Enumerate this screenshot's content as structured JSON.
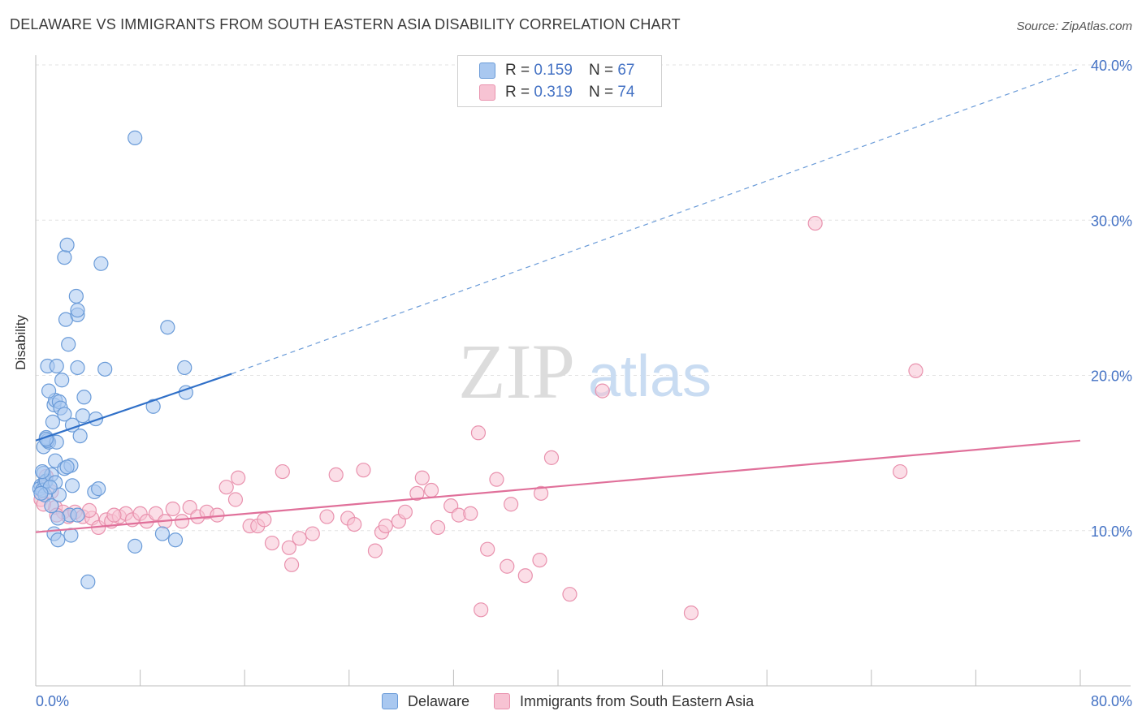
{
  "title": "DELAWARE VS IMMIGRANTS FROM SOUTH EASTERN ASIA DISABILITY CORRELATION CHART",
  "source": "Source: ZipAtlas.com",
  "watermark": {
    "zip": "ZIP",
    "atlas": "atlas"
  },
  "legend_top": [
    {
      "r_label": "R =",
      "r_value": "0.159",
      "n_label": "N =",
      "n_value": "67"
    },
    {
      "r_label": "R =",
      "r_value": "0.319",
      "n_label": "N =",
      "n_value": "74"
    }
  ],
  "colors": {
    "blue_fill": "#a9c8f0",
    "blue_stroke": "#6a9bd8",
    "blue_line": "#3070c8",
    "pink_fill": "#f7c3d3",
    "pink_stroke": "#e992ae",
    "pink_line": "#e0709a",
    "tick_text": "#4472c4",
    "grid": "#e3e3e3"
  },
  "chart_data": {
    "type": "scatter",
    "title": "DELAWARE VS IMMIGRANTS FROM SOUTH EASTERN ASIA DISABILITY CORRELATION CHART",
    "xlabel": "",
    "ylabel": "Disability",
    "xlim": [
      0,
      80
    ],
    "ylim": [
      0,
      40
    ],
    "x_tick_labels": [
      "0.0%",
      "80.0%"
    ],
    "y_ticks": [
      10,
      20,
      30,
      40
    ],
    "y_tick_labels": [
      "10.0%",
      "20.0%",
      "30.0%",
      "40.0%"
    ],
    "series": [
      {
        "name": "Delaware",
        "r": 0.159,
        "n": 67,
        "trend": {
          "x0": 0,
          "y0": 15.8,
          "x1": 15.0,
          "y1": 20.1,
          "dashed_to_x": 80,
          "dashed_to_y": 39.8
        },
        "points": [
          [
            0.4,
            12.9
          ],
          [
            0.6,
            13.7
          ],
          [
            0.3,
            12.7
          ],
          [
            0.7,
            13.1
          ],
          [
            0.5,
            12.6
          ],
          [
            0.8,
            13.2
          ],
          [
            1.2,
            13.6
          ],
          [
            1.5,
            13.1
          ],
          [
            0.6,
            15.4
          ],
          [
            0.8,
            16.0
          ],
          [
            1.0,
            15.7
          ],
          [
            0.9,
            15.8
          ],
          [
            1.3,
            17.0
          ],
          [
            1.6,
            15.7
          ],
          [
            1.4,
            18.1
          ],
          [
            1.5,
            18.4
          ],
          [
            1.8,
            18.3
          ],
          [
            1.9,
            17.9
          ],
          [
            2.2,
            17.5
          ],
          [
            2.8,
            16.8
          ],
          [
            3.4,
            16.1
          ],
          [
            3.6,
            17.4
          ],
          [
            4.6,
            17.2
          ],
          [
            3.7,
            18.6
          ],
          [
            0.9,
            20.6
          ],
          [
            1.6,
            20.6
          ],
          [
            2.0,
            19.7
          ],
          [
            1.0,
            19.0
          ],
          [
            3.2,
            20.5
          ],
          [
            5.3,
            20.4
          ],
          [
            1.5,
            14.5
          ],
          [
            2.2,
            14.0
          ],
          [
            2.7,
            14.2
          ],
          [
            1.8,
            12.3
          ],
          [
            2.8,
            12.9
          ],
          [
            4.5,
            12.5
          ],
          [
            4.8,
            12.7
          ],
          [
            2.6,
            11.0
          ],
          [
            1.7,
            10.8
          ],
          [
            1.4,
            9.8
          ],
          [
            1.7,
            9.4
          ],
          [
            2.7,
            9.7
          ],
          [
            3.2,
            11.0
          ],
          [
            9.7,
            9.8
          ],
          [
            10.7,
            9.4
          ],
          [
            7.6,
            9.0
          ],
          [
            4.0,
            6.7
          ],
          [
            2.5,
            22.0
          ],
          [
            2.3,
            23.6
          ],
          [
            3.2,
            23.9
          ],
          [
            3.2,
            24.2
          ],
          [
            3.1,
            25.1
          ],
          [
            2.2,
            27.6
          ],
          [
            2.4,
            28.4
          ],
          [
            5.0,
            27.2
          ],
          [
            7.6,
            35.3
          ],
          [
            10.1,
            23.1
          ],
          [
            11.5,
            18.9
          ],
          [
            9.0,
            18.0
          ],
          [
            11.4,
            20.5
          ],
          [
            0.7,
            12.3
          ],
          [
            0.5,
            13.8
          ],
          [
            1.2,
            11.6
          ],
          [
            0.8,
            15.9
          ],
          [
            1.1,
            12.8
          ],
          [
            2.4,
            14.1
          ],
          [
            0.4,
            12.4
          ]
        ]
      },
      {
        "name": "Immigrants from South Eastern Asia",
        "r": 0.319,
        "n": 74,
        "trend": {
          "x0": 0,
          "y0": 9.9,
          "x1": 80,
          "y1": 15.8
        },
        "points": [
          [
            0.4,
            12.0
          ],
          [
            0.8,
            13.5
          ],
          [
            1.2,
            12.5
          ],
          [
            1.5,
            11.5
          ],
          [
            2.1,
            11.2
          ],
          [
            2.5,
            10.9
          ],
          [
            3.0,
            11.2
          ],
          [
            3.6,
            10.9
          ],
          [
            4.3,
            10.8
          ],
          [
            4.8,
            10.2
          ],
          [
            5.4,
            10.7
          ],
          [
            5.8,
            10.6
          ],
          [
            6.4,
            10.9
          ],
          [
            6.9,
            11.1
          ],
          [
            7.4,
            10.7
          ],
          [
            8.0,
            11.1
          ],
          [
            8.5,
            10.6
          ],
          [
            9.2,
            11.1
          ],
          [
            9.9,
            10.6
          ],
          [
            10.5,
            11.4
          ],
          [
            11.2,
            10.6
          ],
          [
            11.8,
            11.5
          ],
          [
            12.4,
            10.9
          ],
          [
            13.1,
            11.2
          ],
          [
            13.9,
            11.0
          ],
          [
            14.6,
            12.8
          ],
          [
            15.3,
            12.0
          ],
          [
            15.5,
            13.4
          ],
          [
            16.4,
            10.3
          ],
          [
            17.0,
            10.3
          ],
          [
            17.5,
            10.7
          ],
          [
            18.1,
            9.2
          ],
          [
            18.9,
            13.8
          ],
          [
            19.4,
            8.9
          ],
          [
            19.6,
            7.8
          ],
          [
            20.2,
            9.5
          ],
          [
            21.2,
            9.8
          ],
          [
            22.3,
            10.9
          ],
          [
            23.0,
            13.6
          ],
          [
            23.9,
            10.8
          ],
          [
            24.4,
            10.4
          ],
          [
            25.1,
            13.9
          ],
          [
            26.0,
            8.7
          ],
          [
            26.5,
            9.9
          ],
          [
            26.8,
            10.3
          ],
          [
            27.8,
            10.6
          ],
          [
            28.3,
            11.2
          ],
          [
            29.2,
            12.4
          ],
          [
            29.6,
            13.4
          ],
          [
            30.3,
            12.6
          ],
          [
            30.8,
            10.2
          ],
          [
            31.8,
            11.6
          ],
          [
            32.4,
            11.0
          ],
          [
            33.3,
            11.1
          ],
          [
            33.9,
            16.3
          ],
          [
            34.1,
            4.9
          ],
          [
            34.6,
            8.8
          ],
          [
            35.3,
            13.3
          ],
          [
            36.1,
            7.7
          ],
          [
            36.4,
            11.7
          ],
          [
            37.5,
            7.1
          ],
          [
            38.6,
            8.1
          ],
          [
            38.7,
            12.4
          ],
          [
            39.5,
            14.7
          ],
          [
            40.9,
            5.9
          ],
          [
            43.4,
            19.0
          ],
          [
            50.2,
            4.7
          ],
          [
            59.7,
            29.8
          ],
          [
            66.2,
            13.8
          ],
          [
            67.4,
            20.3
          ],
          [
            4.1,
            11.3
          ],
          [
            6.0,
            11.0
          ],
          [
            0.6,
            11.7
          ],
          [
            1.6,
            11.0
          ]
        ]
      }
    ]
  },
  "legend_bottom": [
    "Delaware",
    "Immigrants from South Eastern Asia"
  ]
}
